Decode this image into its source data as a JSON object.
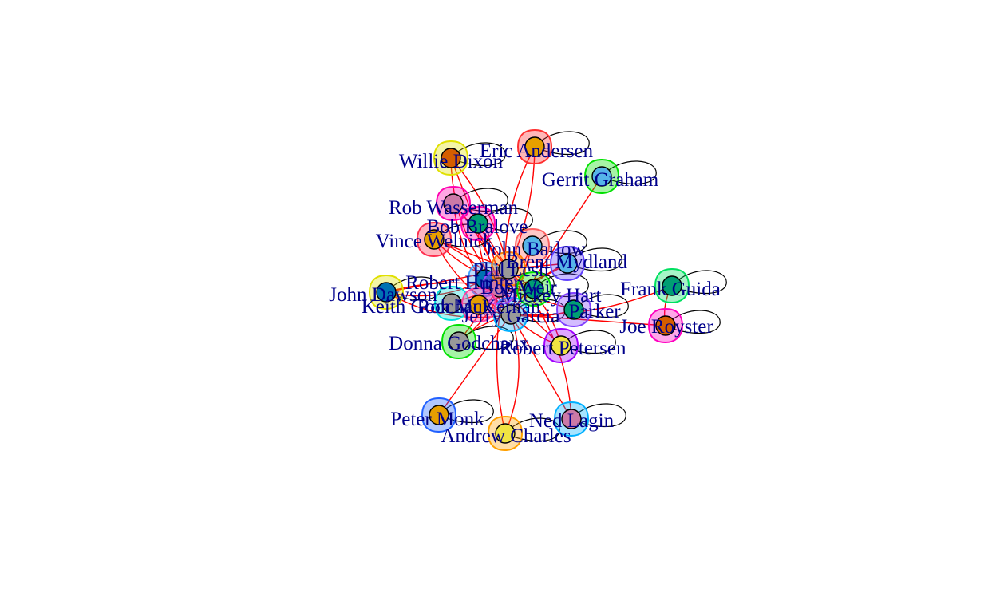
{
  "graph": {
    "nodes": [
      {
        "id": "eric",
        "label": "Eric Andersen",
        "fill": "#e69f00",
        "halo": "#ff3030"
      },
      {
        "id": "willie",
        "label": "Willie Dixon",
        "fill": "#d55e00",
        "halo": "#e0e000"
      },
      {
        "id": "gerrit",
        "label": "Gerrit Graham",
        "fill": "#56b4e9",
        "halo": "#00e000"
      },
      {
        "id": "robw",
        "label": "Rob Wasserman",
        "fill": "#cc79a7",
        "halo": "#ff00b0"
      },
      {
        "id": "bobb",
        "label": "Bob Bralove",
        "fill": "#009e73",
        "halo": "#ff00b0"
      },
      {
        "id": "vince",
        "label": "Vince Welnick",
        "fill": "#e69f00",
        "halo": "#ff3050"
      },
      {
        "id": "johnb",
        "label": "John Barlow",
        "fill": "#56b4e9",
        "halo": "#ff6060"
      },
      {
        "id": "brent",
        "label": "Brent Mydland",
        "fill": "#56b4e9",
        "halo": "#6040ff"
      },
      {
        "id": "frank",
        "label": "Frank Guida",
        "fill": "#009e73",
        "halo": "#00e060"
      },
      {
        "id": "joe",
        "label": "Joe Royster",
        "fill": "#d55e00",
        "halo": "#ff00c0"
      },
      {
        "id": "johnd",
        "label": "John Dawson",
        "fill": "#0072b2",
        "halo": "#e0e000"
      },
      {
        "id": "keith",
        "label": "Keith Godchaux",
        "fill": "#999999",
        "halo": "#00e0e0"
      },
      {
        "id": "robert",
        "label": "Robert Hunter",
        "fill": "#0072b2",
        "halo": "#40a0ff"
      },
      {
        "id": "donna",
        "label": "Donna Godchaux",
        "fill": "#999999",
        "halo": "#00e000"
      },
      {
        "id": "robertp",
        "label": "Robert Petersen",
        "fill": "#f0e442",
        "halo": "#a000ff"
      },
      {
        "id": "jparker",
        "label": "Parker",
        "fill": "#009e73",
        "halo": "#8040ff"
      },
      {
        "id": "c1",
        "label": "Jerry Garcia",
        "fill": "#999999",
        "halo": "#00b0ff"
      },
      {
        "id": "c2",
        "label": "Bob Weir",
        "fill": "#cc79a7",
        "halo": "#a040ff"
      },
      {
        "id": "c3",
        "label": "Phil Lesh",
        "fill": "#999999",
        "halo": "#ff8000"
      },
      {
        "id": "c4",
        "label": "Mickey Hart",
        "fill": "#009e73",
        "halo": "#00e000"
      },
      {
        "id": "c5",
        "label": "Ron McKernan",
        "fill": "#e69f00",
        "halo": "#ff40a0"
      },
      {
        "id": "peter",
        "label": "Peter Monk",
        "fill": "#e69f00",
        "halo": "#2060ff"
      },
      {
        "id": "andrew",
        "label": "Andrew Charles",
        "fill": "#f0e442",
        "halo": "#ffa000"
      },
      {
        "id": "ned",
        "label": "Ned Lagin",
        "fill": "#cc79a7",
        "halo": "#00b0ff"
      }
    ],
    "edges": [
      [
        "eric",
        "c1"
      ],
      [
        "eric",
        "c2"
      ],
      [
        "willie",
        "c1"
      ],
      [
        "willie",
        "c2"
      ],
      [
        "willie",
        "c3"
      ],
      [
        "gerrit",
        "c1"
      ],
      [
        "robw",
        "c1"
      ],
      [
        "robw",
        "c2"
      ],
      [
        "robw",
        "c3"
      ],
      [
        "bobb",
        "c1"
      ],
      [
        "bobb",
        "c2"
      ],
      [
        "bobb",
        "c3"
      ],
      [
        "vince",
        "c1"
      ],
      [
        "vince",
        "c2"
      ],
      [
        "vince",
        "c3"
      ],
      [
        "vince",
        "c4"
      ],
      [
        "johnb",
        "c2"
      ],
      [
        "johnb",
        "c1"
      ],
      [
        "brent",
        "c1"
      ],
      [
        "brent",
        "c2"
      ],
      [
        "brent",
        "c3"
      ],
      [
        "frank",
        "joe"
      ],
      [
        "frank",
        "c1"
      ],
      [
        "joe",
        "c1"
      ],
      [
        "johnd",
        "c1"
      ],
      [
        "johnd",
        "c2"
      ],
      [
        "johnd",
        "c3"
      ],
      [
        "johnd",
        "robert"
      ],
      [
        "keith",
        "c1"
      ],
      [
        "keith",
        "c2"
      ],
      [
        "robert",
        "c1"
      ],
      [
        "robert",
        "c2"
      ],
      [
        "robert",
        "c3"
      ],
      [
        "robert",
        "c4"
      ],
      [
        "donna",
        "c1"
      ],
      [
        "donna",
        "c2"
      ],
      [
        "donna",
        "c3"
      ],
      [
        "robertp",
        "c1"
      ],
      [
        "robertp",
        "c2"
      ],
      [
        "robertp",
        "c3"
      ],
      [
        "jparker",
        "c1"
      ],
      [
        "jparker",
        "c2"
      ],
      [
        "c1",
        "c2"
      ],
      [
        "c1",
        "c3"
      ],
      [
        "c2",
        "c3"
      ],
      [
        "c3",
        "c4"
      ],
      [
        "c1",
        "c5"
      ],
      [
        "peter",
        "c1"
      ],
      [
        "andrew",
        "c1"
      ],
      [
        "andrew",
        "c3"
      ],
      [
        "ned",
        "c1"
      ],
      [
        "ned",
        "c3"
      ],
      [
        "c5",
        "c2"
      ],
      [
        "c4",
        "c1"
      ]
    ]
  }
}
